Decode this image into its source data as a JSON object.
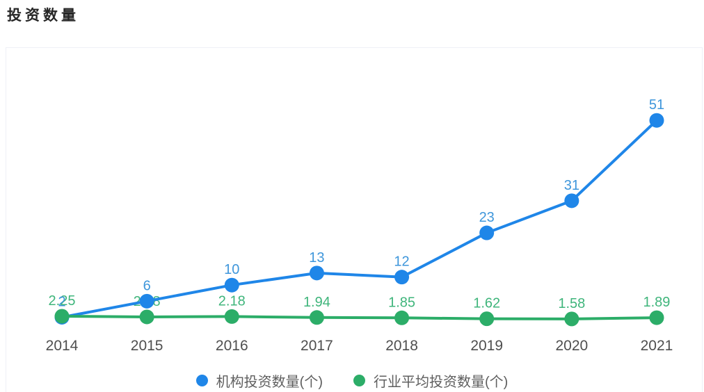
{
  "page": {
    "title": "投资数量"
  },
  "colors": {
    "blue": "#1f86e8",
    "green": "#2cad68",
    "blue_label": "#3e96db",
    "green_label": "#3fb57b",
    "axis_text": "#4f4f4f",
    "legend_text": "#5e5e5e",
    "title_text": "#262626",
    "card_border": "#eef0f6",
    "background": "#ffffff"
  },
  "chart_data": {
    "type": "line",
    "title": "投资数量",
    "x": [
      "2014",
      "2015",
      "2016",
      "2017",
      "2018",
      "2019",
      "2020",
      "2021"
    ],
    "series": [
      {
        "name": "机构投资数量(个)",
        "color": "blue",
        "values": [
          2,
          6,
          10,
          13,
          12,
          23,
          31,
          51
        ],
        "labels": [
          "2",
          "6",
          "10",
          "13",
          "12",
          "23",
          "31",
          "51"
        ]
      },
      {
        "name": "行业平均投资数量(个)",
        "color": "green",
        "values": [
          2.25,
          2.08,
          2.18,
          1.94,
          1.85,
          1.62,
          1.58,
          1.89
        ],
        "labels": [
          "2.25",
          "2.08",
          "2.18",
          "1.94",
          "1.85",
          "1.62",
          "1.58",
          "1.89"
        ]
      }
    ],
    "ylim": [
      0,
      55
    ],
    "grid": false,
    "legend_position": "bottom",
    "xlabel": "",
    "ylabel": ""
  },
  "legend": {
    "items": [
      {
        "label": "机构投资数量(个)",
        "color": "blue"
      },
      {
        "label": "行业平均投资数量(个)",
        "color": "green"
      }
    ]
  }
}
